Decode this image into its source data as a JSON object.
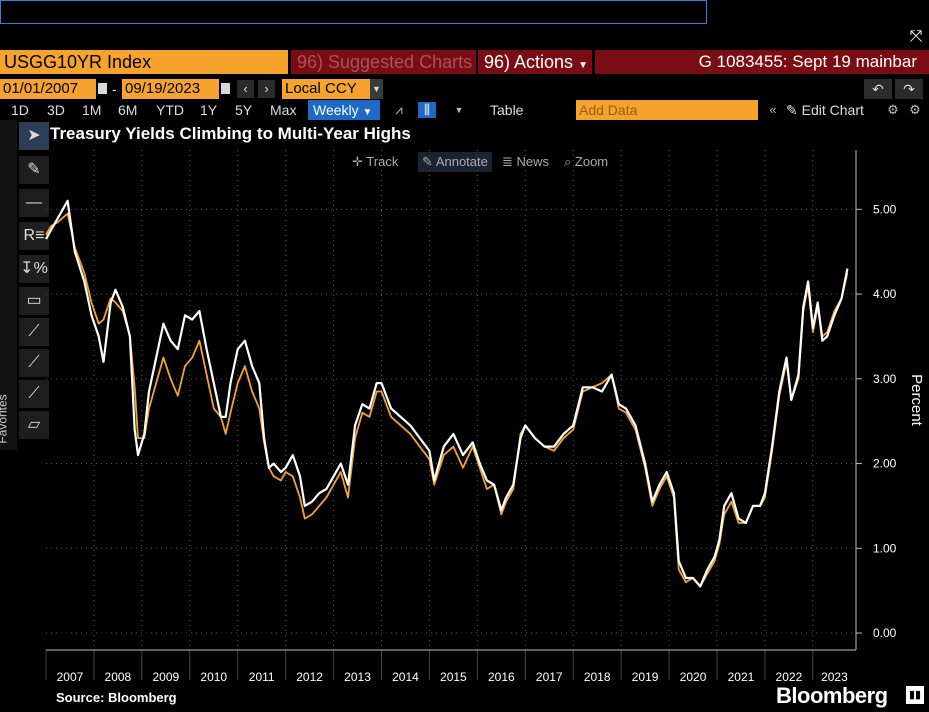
{
  "topbar": {
    "command_value": ""
  },
  "header": {
    "ticker": "USGG10YR Index",
    "suggested": "96) Suggested Charts",
    "actions": "96) Actions",
    "right_title": "G 1083455: Sept 19 mainbar"
  },
  "range": {
    "start": "01/01/2007",
    "end": "09/19/2023",
    "currency": "Local CCY"
  },
  "periods": [
    "1D",
    "3D",
    "1M",
    "6M",
    "YTD",
    "1Y",
    "5Y",
    "Max"
  ],
  "frequency": "Weekly",
  "toolbar": {
    "table_label": "Table",
    "add_data_placeholder": "Add Data",
    "edit_chart_label": "Edit Chart"
  },
  "sidebar": {
    "favorites_label": "Favorites"
  },
  "overlay_buttons": [
    "Track",
    "Annotate",
    "News",
    "Zoom"
  ],
  "footer": {
    "source": "Source:  Bloomberg",
    "brand": "Bloomberg"
  },
  "colors": {
    "series_white": "#ffffff",
    "series_orange": "#f5a32c",
    "accent_blue": "#1d69c4",
    "header_red": "#7a0c14"
  },
  "chart_data": {
    "type": "line",
    "title": "Treasury Yields Climbing to Multi-Year Highs",
    "ylabel": "Percent",
    "ylim": [
      -0.2,
      5.7
    ],
    "yticks": [
      0,
      1,
      2,
      3,
      4,
      5
    ],
    "ytick_labels": [
      "0.00",
      "1.00",
      "2.00",
      "3.00",
      "4.00",
      "5.00"
    ],
    "xlim": [
      2007.0,
      2023.9
    ],
    "xticks": [
      2007,
      2008,
      2009,
      2010,
      2011,
      2012,
      2013,
      2014,
      2015,
      2016,
      2017,
      2018,
      2019,
      2020,
      2021,
      2022,
      2023
    ],
    "grid": true,
    "series": [
      {
        "color": "#ffffff",
        "x": [
          2007.0,
          2007.1,
          2007.25,
          2007.45,
          2007.6,
          2007.8,
          2007.95,
          2008.1,
          2008.2,
          2008.35,
          2008.45,
          2008.6,
          2008.75,
          2008.85,
          2008.92,
          2009.05,
          2009.15,
          2009.3,
          2009.45,
          2009.6,
          2009.75,
          2009.9,
          2010.05,
          2010.2,
          2010.35,
          2010.5,
          2010.65,
          2010.75,
          2010.85,
          2011.0,
          2011.15,
          2011.3,
          2011.45,
          2011.55,
          2011.65,
          2011.75,
          2011.9,
          2012.0,
          2012.15,
          2012.3,
          2012.4,
          2012.55,
          2012.7,
          2012.85,
          2013.0,
          2013.15,
          2013.3,
          2013.45,
          2013.6,
          2013.75,
          2013.9,
          2014.0,
          2014.2,
          2014.4,
          2014.6,
          2014.8,
          2015.0,
          2015.1,
          2015.3,
          2015.5,
          2015.7,
          2015.9,
          2016.05,
          2016.2,
          2016.35,
          2016.5,
          2016.6,
          2016.75,
          2016.9,
          2017.0,
          2017.2,
          2017.4,
          2017.6,
          2017.8,
          2018.0,
          2018.2,
          2018.4,
          2018.6,
          2018.8,
          2018.95,
          2019.1,
          2019.3,
          2019.5,
          2019.65,
          2019.8,
          2019.95,
          2020.1,
          2020.2,
          2020.35,
          2020.5,
          2020.65,
          2020.8,
          2020.95,
          2021.05,
          2021.15,
          2021.3,
          2021.45,
          2021.6,
          2021.75,
          2021.9,
          2022.0,
          2022.15,
          2022.3,
          2022.45,
          2022.55,
          2022.7,
          2022.8,
          2022.9,
          2023.0,
          2023.1,
          2023.2,
          2023.3,
          2023.45,
          2023.6,
          2023.72
        ],
        "y": [
          4.65,
          4.75,
          4.9,
          5.1,
          4.5,
          4.15,
          3.75,
          3.5,
          3.2,
          3.9,
          4.05,
          3.85,
          3.5,
          2.4,
          2.1,
          2.35,
          2.85,
          3.25,
          3.65,
          3.45,
          3.35,
          3.75,
          3.7,
          3.8,
          3.35,
          2.95,
          2.55,
          2.55,
          2.95,
          3.35,
          3.45,
          3.15,
          2.95,
          2.3,
          1.95,
          2.0,
          1.9,
          1.95,
          2.1,
          1.85,
          1.5,
          1.55,
          1.65,
          1.7,
          1.85,
          2.0,
          1.75,
          2.45,
          2.7,
          2.65,
          2.95,
          2.95,
          2.65,
          2.55,
          2.45,
          2.3,
          2.15,
          1.8,
          2.2,
          2.35,
          2.1,
          2.25,
          2.0,
          1.8,
          1.75,
          1.45,
          1.6,
          1.75,
          2.3,
          2.45,
          2.3,
          2.2,
          2.2,
          2.35,
          2.45,
          2.9,
          2.9,
          2.85,
          3.05,
          2.7,
          2.65,
          2.45,
          2.0,
          1.55,
          1.75,
          1.9,
          1.65,
          0.85,
          0.65,
          0.65,
          0.55,
          0.75,
          0.9,
          1.1,
          1.5,
          1.65,
          1.35,
          1.3,
          1.5,
          1.5,
          1.65,
          2.2,
          2.85,
          3.25,
          2.75,
          3.05,
          3.85,
          4.15,
          3.6,
          3.9,
          3.45,
          3.5,
          3.75,
          3.95,
          4.3
        ]
      },
      {
        "color": "#f5a32c",
        "x": [
          2007.0,
          2007.1,
          2007.25,
          2007.45,
          2007.6,
          2007.8,
          2007.95,
          2008.1,
          2008.2,
          2008.35,
          2008.45,
          2008.6,
          2008.75,
          2008.85,
          2008.92,
          2009.05,
          2009.15,
          2009.3,
          2009.45,
          2009.6,
          2009.75,
          2009.9,
          2010.05,
          2010.2,
          2010.35,
          2010.5,
          2010.65,
          2010.75,
          2010.85,
          2011.0,
          2011.15,
          2011.3,
          2011.45,
          2011.55,
          2011.65,
          2011.75,
          2011.9,
          2012.0,
          2012.15,
          2012.3,
          2012.4,
          2012.55,
          2012.7,
          2012.85,
          2013.0,
          2013.15,
          2013.3,
          2013.45,
          2013.6,
          2013.75,
          2013.9,
          2014.0,
          2014.2,
          2014.4,
          2014.6,
          2014.8,
          2015.0,
          2015.1,
          2015.3,
          2015.5,
          2015.7,
          2015.9,
          2016.05,
          2016.2,
          2016.35,
          2016.5,
          2016.6,
          2016.75,
          2016.9,
          2017.0,
          2017.2,
          2017.4,
          2017.6,
          2017.8,
          2018.0,
          2018.2,
          2018.4,
          2018.6,
          2018.8,
          2018.95,
          2019.1,
          2019.3,
          2019.5,
          2019.65,
          2019.8,
          2019.95,
          2020.1,
          2020.2,
          2020.35,
          2020.5,
          2020.65,
          2020.8,
          2020.95,
          2021.05,
          2021.15,
          2021.3,
          2021.45,
          2021.6,
          2021.75,
          2021.9,
          2022.0,
          2022.15,
          2022.3,
          2022.45,
          2022.55,
          2022.7,
          2022.8,
          2022.9,
          2023.0,
          2023.1,
          2023.2,
          2023.3,
          2023.45,
          2023.6,
          2023.72
        ],
        "y": [
          4.7,
          4.8,
          4.85,
          4.95,
          4.55,
          4.25,
          3.9,
          3.65,
          3.7,
          3.95,
          3.9,
          3.8,
          3.5,
          2.9,
          2.3,
          2.3,
          2.65,
          2.95,
          3.25,
          3.0,
          2.8,
          3.15,
          3.25,
          3.45,
          3.05,
          2.65,
          2.55,
          2.35,
          2.6,
          2.95,
          3.15,
          2.85,
          2.65,
          2.25,
          1.95,
          1.85,
          1.8,
          1.9,
          1.85,
          1.6,
          1.35,
          1.4,
          1.5,
          1.6,
          1.75,
          1.9,
          1.6,
          2.3,
          2.6,
          2.55,
          2.85,
          2.85,
          2.55,
          2.45,
          2.35,
          2.2,
          2.05,
          1.75,
          2.1,
          2.2,
          1.95,
          2.2,
          1.95,
          1.7,
          1.75,
          1.4,
          1.55,
          1.7,
          2.35,
          2.45,
          2.3,
          2.2,
          2.15,
          2.3,
          2.4,
          2.85,
          2.9,
          2.95,
          3.05,
          2.65,
          2.6,
          2.4,
          1.95,
          1.5,
          1.7,
          1.85,
          1.6,
          0.75,
          0.6,
          0.65,
          0.55,
          0.7,
          0.85,
          1.05,
          1.4,
          1.55,
          1.3,
          1.3,
          1.5,
          1.5,
          1.6,
          2.15,
          2.8,
          3.2,
          2.75,
          3.0,
          3.8,
          4.1,
          3.55,
          3.85,
          3.5,
          3.55,
          3.8,
          3.95,
          4.25
        ]
      }
    ]
  }
}
